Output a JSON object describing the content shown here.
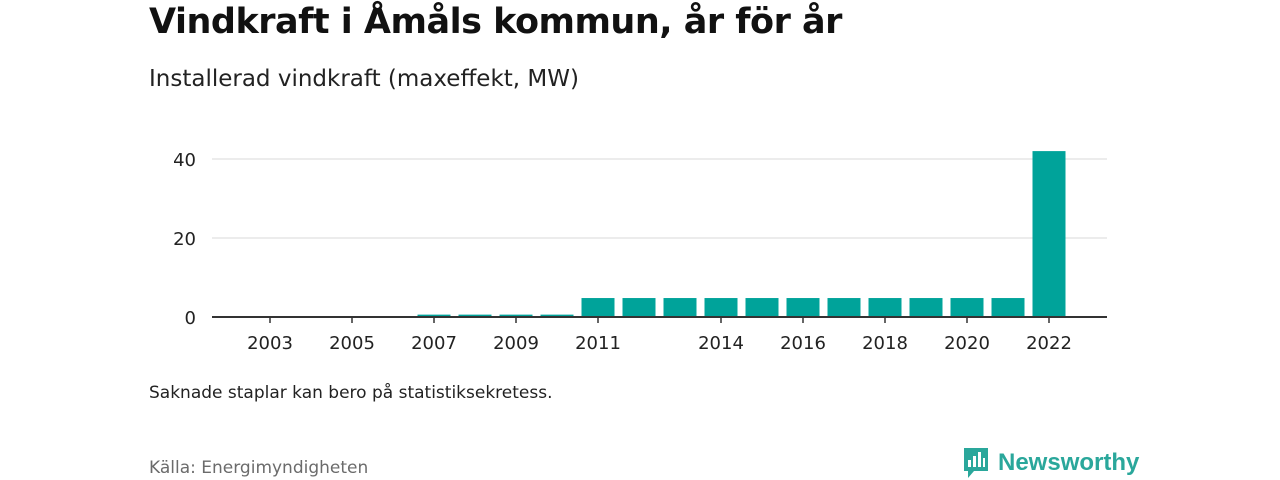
{
  "header": {
    "title": "Vindkraft i Åmåls kommun, år för år",
    "subtitle": "Installerad vindkraft (maxeffekt, MW)"
  },
  "footer": {
    "note": "Saknade staplar kan bero på statistiksekretess.",
    "source": "Källa: Energimyndigheten",
    "brand": "Newsworthy",
    "brand_icon": "newsworthy-logo-icon"
  },
  "colors": {
    "bar": "#00a39a",
    "grid": "#d9d9d9",
    "axis": "#333333",
    "brand": "#2aa79b"
  },
  "chart_data": {
    "type": "bar",
    "title": "",
    "xlabel": "",
    "ylabel": "",
    "categories": [
      "2002",
      "2003",
      "2004",
      "2005",
      "2006",
      "2007",
      "2008",
      "2009",
      "2010",
      "2011",
      "2012",
      "2013",
      "2014",
      "2015",
      "2016",
      "2017",
      "2018",
      "2019",
      "2020",
      "2021",
      "2022"
    ],
    "values": [
      0,
      0,
      0,
      0,
      0,
      0.6,
      0.6,
      0.6,
      0.6,
      4.8,
      4.8,
      4.8,
      4.8,
      4.8,
      4.8,
      4.8,
      4.8,
      4.8,
      4.8,
      4.8,
      42
    ],
    "x_tick_labels": [
      "2003",
      "2005",
      "2007",
      "2009",
      "2011",
      "2014",
      "2016",
      "2018",
      "2020",
      "2022"
    ],
    "y_ticks": [
      0,
      20,
      40
    ],
    "ylim": [
      0,
      42
    ],
    "grid": true,
    "legend": "none"
  }
}
